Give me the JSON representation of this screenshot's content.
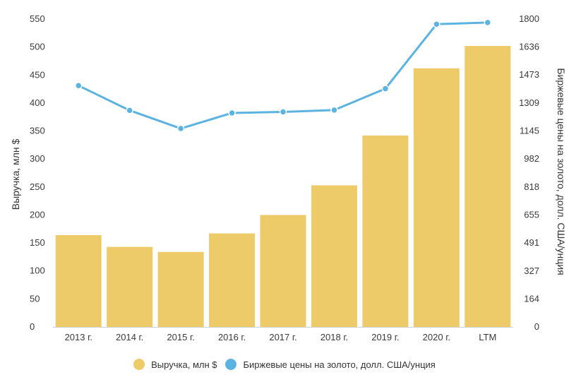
{
  "chart_data": {
    "type": "bar+line",
    "categories": [
      "2013 г.",
      "2014 г.",
      "2015 г.",
      "2016 г.",
      "2017 г.",
      "2018 г.",
      "2019 г.",
      "2020 г.",
      "LTM"
    ],
    "series": [
      {
        "name": "Выручка, млн $",
        "type": "bar",
        "axis": "left",
        "color": "#EDCB68",
        "values": [
          164,
          143,
          134,
          167,
          200,
          253,
          342,
          462,
          502
        ]
      },
      {
        "name": "Биржевые цены на золото, долл. США/унция",
        "type": "line",
        "axis": "right",
        "color": "#5DB3E0",
        "values": [
          1411,
          1266,
          1160,
          1251,
          1257,
          1268,
          1393,
          1770,
          1780
        ]
      }
    ],
    "y_left": {
      "label": "Выручка, млн $",
      "ticks": [
        0,
        50,
        100,
        150,
        200,
        250,
        300,
        350,
        400,
        450,
        500,
        550
      ],
      "range": [
        0,
        550
      ]
    },
    "y_right": {
      "label": "Биржевые цены на золото, долл. США/унция",
      "ticks": [
        0,
        164,
        327,
        491,
        655,
        818,
        982,
        1145,
        1309,
        1473,
        1636,
        1800
      ],
      "range": [
        0,
        1800
      ]
    },
    "legend_position": "bottom",
    "grid": false
  }
}
